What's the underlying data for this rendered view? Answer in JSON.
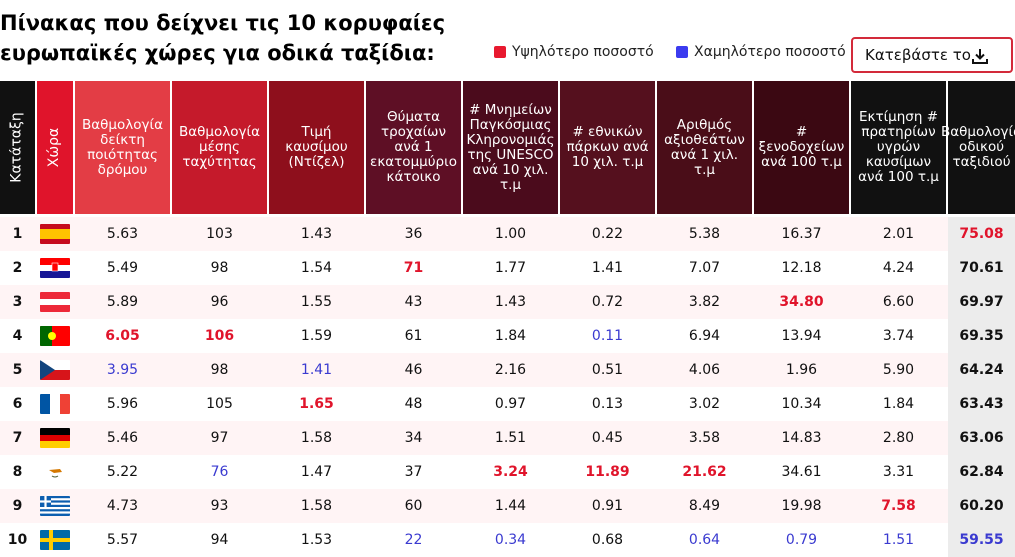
{
  "title": "Πίνακας που δείχνει τις 10 κορυφαίες ευρωπαϊκές χώρες για οδικά ταξίδια:",
  "legend": {
    "high_label": "Υψηλότερο ποσοστό",
    "low_label": "Χαμηλότερο ποσοστό",
    "high_color": "#e8192f",
    "low_color": "#3b3bef"
  },
  "download_button": {
    "label": "Κατεβάστε το",
    "icon": "download-icon"
  },
  "columns": [
    {
      "label": "Κατάταξη",
      "bg": "#111111",
      "vertical": true
    },
    {
      "label": "Χώρα",
      "bg": "#e0142b",
      "vertical": true
    },
    {
      "label": "Βαθμολογία δείκτη ποιότητας δρόμου",
      "bg": "#e33d45"
    },
    {
      "label": "Βαθμολογία μέσης ταχύτητας",
      "bg": "#c51a2b"
    },
    {
      "label": "Τιμή καυσίμου (Ντίζελ)",
      "bg": "#8e0f1c"
    },
    {
      "label": "Θύματα τροχαίων ανά 1 εκατομμύριο κάτοικο",
      "bg": "#5e0f25"
    },
    {
      "label": "# Μνημείων Παγκόσμιας Κληρονομιάς της UNESCO ανά 10 χιλ. τ.μ",
      "bg": "#4b0b1c"
    },
    {
      "label": "# εθνικών πάρκων ανά 10 χιλ. τ.μ",
      "bg": "#55101e"
    },
    {
      "label": "Αριθμός αξιοθεάτων ανά 1 χιλ. τ.μ",
      "bg": "#4a0d18"
    },
    {
      "label": "# ξενοδοχείων ανά 100 τ.μ",
      "bg": "#3b0812"
    },
    {
      "label": "Εκτίμηση # πρατηρίων υγρών καυσίμων ανά 100 τ.μ",
      "bg": "#111111"
    },
    {
      "label": "Βαθμολογία οδικού ταξιδιού",
      "bg": "#111111"
    }
  ],
  "rows": [
    {
      "rank": "1",
      "flag": "spain-flag",
      "v": [
        "5.63",
        "103",
        "1.43",
        "36",
        "1.00",
        "0.22",
        "5.38",
        "16.37",
        "2.01",
        "75.08"
      ],
      "hl": [
        "",
        "",
        "",
        "",
        "",
        "",
        "",
        "",
        "",
        "hi"
      ]
    },
    {
      "rank": "2",
      "flag": "croatia-flag",
      "v": [
        "5.49",
        "98",
        "1.54",
        "71",
        "1.77",
        "1.41",
        "7.07",
        "12.18",
        "4.24",
        "70.61"
      ],
      "hl": [
        "",
        "",
        "",
        "hi",
        "",
        "",
        "",
        "",
        "",
        ""
      ]
    },
    {
      "rank": "3",
      "flag": "austria-flag",
      "v": [
        "5.89",
        "96",
        "1.55",
        "43",
        "1.43",
        "0.72",
        "3.82",
        "34.80",
        "6.60",
        "69.97"
      ],
      "hl": [
        "",
        "",
        "",
        "",
        "",
        "",
        "",
        "hi",
        "",
        ""
      ]
    },
    {
      "rank": "4",
      "flag": "portugal-flag",
      "v": [
        "6.05",
        "106",
        "1.59",
        "61",
        "1.84",
        "0.11",
        "6.94",
        "13.94",
        "3.74",
        "69.35"
      ],
      "hl": [
        "hi",
        "hi",
        "",
        "",
        "",
        "lo",
        "",
        "",
        "",
        ""
      ]
    },
    {
      "rank": "5",
      "flag": "czech-flag",
      "v": [
        "3.95",
        "98",
        "1.41",
        "46",
        "2.16",
        "0.51",
        "4.06",
        "1.96",
        "5.90",
        "64.24"
      ],
      "hl": [
        "lo",
        "",
        "lo",
        "",
        "",
        "",
        "",
        "",
        "",
        ""
      ]
    },
    {
      "rank": "6",
      "flag": "france-flag",
      "v": [
        "5.96",
        "105",
        "1.65",
        "48",
        "0.97",
        "0.13",
        "3.02",
        "10.34",
        "1.84",
        "63.43"
      ],
      "hl": [
        "",
        "",
        "hi",
        "",
        "",
        "",
        "",
        "",
        "",
        ""
      ]
    },
    {
      "rank": "7",
      "flag": "germany-flag",
      "v": [
        "5.46",
        "97",
        "1.58",
        "34",
        "1.51",
        "0.45",
        "3.58",
        "14.83",
        "2.80",
        "63.06"
      ],
      "hl": [
        "",
        "",
        "",
        "",
        "",
        "",
        "",
        "",
        "",
        ""
      ]
    },
    {
      "rank": "8",
      "flag": "cyprus-flag",
      "v": [
        "5.22",
        "76",
        "1.47",
        "37",
        "3.24",
        "11.89",
        "21.62",
        "34.61",
        "3.31",
        "62.84"
      ],
      "hl": [
        "",
        "lo",
        "",
        "",
        "hi",
        "hi",
        "hi",
        "",
        "",
        ""
      ]
    },
    {
      "rank": "9",
      "flag": "greece-flag",
      "v": [
        "4.73",
        "93",
        "1.58",
        "60",
        "1.44",
        "0.91",
        "8.49",
        "19.98",
        "7.58",
        "60.20"
      ],
      "hl": [
        "",
        "",
        "",
        "",
        "",
        "",
        "",
        "",
        "hi",
        ""
      ]
    },
    {
      "rank": "10",
      "flag": "sweden-flag",
      "v": [
        "5.57",
        "94",
        "1.53",
        "22",
        "0.34",
        "0.68",
        "0.64",
        "0.79",
        "1.51",
        "59.55"
      ],
      "hl": [
        "",
        "",
        "",
        "lo",
        "lo",
        "",
        "lo",
        "lo",
        "lo",
        "lo"
      ]
    }
  ]
}
